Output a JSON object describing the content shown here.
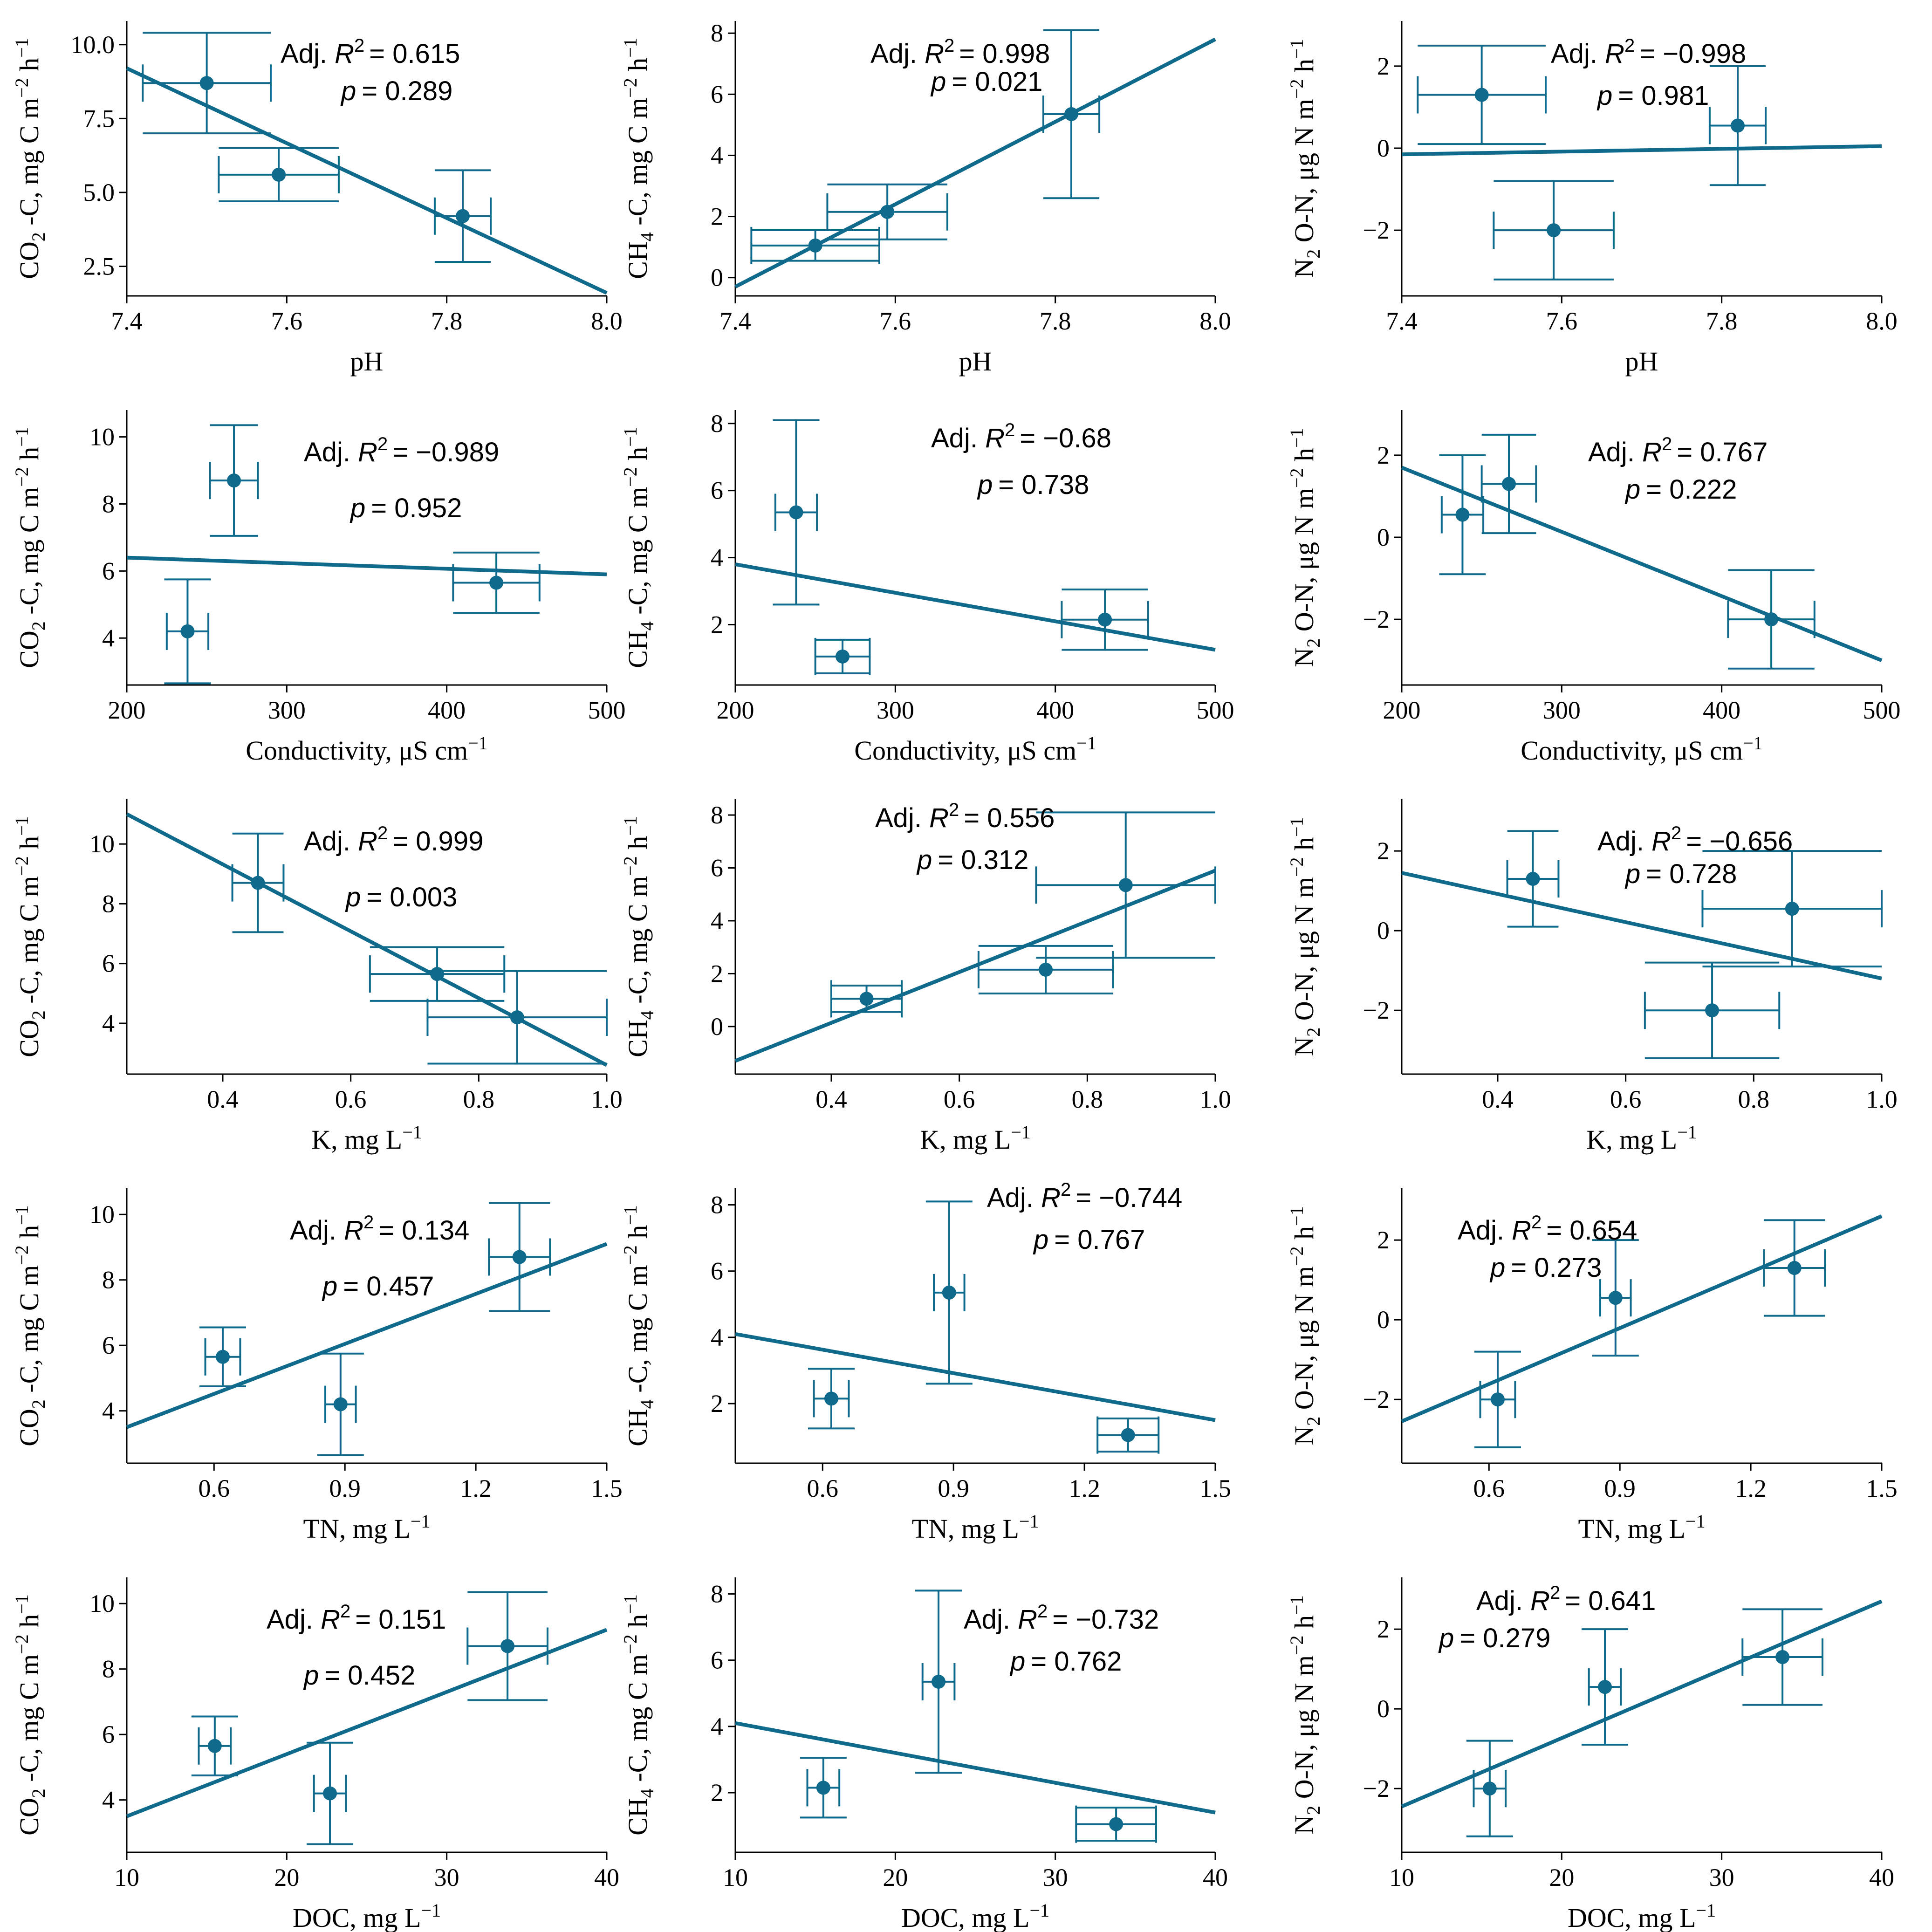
{
  "colors": {
    "series": "#0f6a8b",
    "axis": "#000000"
  },
  "chart_data": [
    {
      "type": "scatter",
      "row": 0,
      "col": 0,
      "x_label": "pH",
      "y_label": "CO2 -C, mg C m-2 h-1",
      "xlim": [
        7.4,
        8.0
      ],
      "ylim": [
        1.5,
        10.8
      ],
      "xticks": [
        7.4,
        7.6,
        7.8,
        8.0
      ],
      "xtick_labels": [
        "7.4",
        "7.6",
        "7.8",
        "8.0"
      ],
      "yticks": [
        2.5,
        5.0,
        7.5,
        10.0
      ],
      "ytick_labels": [
        "2.5",
        "5.0",
        "7.5",
        "10.0"
      ],
      "points": [
        {
          "x": 7.5,
          "y": 8.7,
          "xerr": 0.08,
          "yerr": 1.7
        },
        {
          "x": 7.59,
          "y": 5.6,
          "xerr": 0.075,
          "yerr": 0.9
        },
        {
          "x": 7.82,
          "y": 4.2,
          "xerr": 0.035,
          "yerr": 1.55
        }
      ],
      "fit": {
        "x1": 7.4,
        "y1": 9.2,
        "x2": 8.0,
        "y2": 1.6
      },
      "adj_r2_label": "Adj. R",
      "adj_r2_value": "= 0.615",
      "p_label": "p",
      "p_value": "= 0.289"
    },
    {
      "type": "scatter",
      "row": 0,
      "col": 1,
      "x_label": "pH",
      "y_label": "CH4 -C, mg C m-2 h-1",
      "xlim": [
        7.4,
        8.0
      ],
      "ylim": [
        -0.6,
        8.4
      ],
      "xticks": [
        7.4,
        7.6,
        7.8,
        8.0
      ],
      "xtick_labels": [
        "7.4",
        "7.6",
        "7.8",
        "8.0"
      ],
      "yticks": [
        0,
        2,
        4,
        6,
        8
      ],
      "ytick_labels": [
        "0",
        "2",
        "4",
        "6",
        "8"
      ],
      "points": [
        {
          "x": 7.5,
          "y": 1.05,
          "xerr": 0.08,
          "yerr": 0.5
        },
        {
          "x": 7.59,
          "y": 2.15,
          "xerr": 0.075,
          "yerr": 0.9
        },
        {
          "x": 7.82,
          "y": 5.35,
          "xerr": 0.035,
          "yerr": 2.75
        }
      ],
      "fit": {
        "x1": 7.4,
        "y1": -0.3,
        "x2": 8.0,
        "y2": 7.8
      },
      "adj_r2_label": "Adj. R",
      "adj_r2_value": "= 0.998",
      "p_label": "p",
      "p_value": "= 0.021"
    },
    {
      "type": "scatter",
      "row": 0,
      "col": 2,
      "x_label": "pH",
      "y_label": "N2 O-N, μg N m-2 h-1",
      "xlim": [
        7.4,
        8.0
      ],
      "ylim": [
        -3.6,
        3.1
      ],
      "xticks": [
        7.4,
        7.6,
        7.8,
        8.0
      ],
      "xtick_labels": [
        "7.4",
        "7.6",
        "7.8",
        "8.0"
      ],
      "yticks": [
        -2,
        0,
        2
      ],
      "ytick_labels": [
        "−2",
        "0",
        "2"
      ],
      "points": [
        {
          "x": 7.5,
          "y": 1.3,
          "xerr": 0.08,
          "yerr": 1.2
        },
        {
          "x": 7.59,
          "y": -2.0,
          "xerr": 0.075,
          "yerr": 1.2
        },
        {
          "x": 7.82,
          "y": 0.55,
          "xerr": 0.035,
          "yerr": 1.45
        }
      ],
      "fit": {
        "x1": 7.4,
        "y1": -0.15,
        "x2": 8.0,
        "y2": 0.05
      },
      "adj_r2_label": "Adj. R",
      "adj_r2_value": "= −0.998",
      "p_label": "p",
      "p_value": "= 0.981"
    },
    {
      "type": "scatter",
      "row": 1,
      "col": 0,
      "x_label": "Conductivity,  μS cm-1",
      "y_label": "CO2 -C, mg C m-2 h-1",
      "xlim": [
        200,
        500
      ],
      "ylim": [
        2.6,
        10.8
      ],
      "xticks": [
        200,
        300,
        400,
        500
      ],
      "xtick_labels": [
        "200",
        "300",
        "400",
        "500"
      ],
      "yticks": [
        4,
        6,
        8,
        10
      ],
      "ytick_labels": [
        "4",
        "6",
        "8",
        "10"
      ],
      "points": [
        {
          "x": 238,
          "y": 4.2,
          "xerr": 13,
          "yerr": 1.55
        },
        {
          "x": 267,
          "y": 8.7,
          "xerr": 15,
          "yerr": 1.65
        },
        {
          "x": 431,
          "y": 5.65,
          "xerr": 27,
          "yerr": 0.9
        }
      ],
      "fit": {
        "x1": 200,
        "y1": 6.4,
        "x2": 500,
        "y2": 5.9
      },
      "adj_r2_label": "Adj. R",
      "adj_r2_value": "= −0.989",
      "p_label": "p",
      "p_value": "= 0.952"
    },
    {
      "type": "scatter",
      "row": 1,
      "col": 1,
      "x_label": "Conductivity,  μS cm-1",
      "y_label": "CH4 -C, mg C m-2 h-1",
      "xlim": [
        200,
        500
      ],
      "ylim": [
        0.2,
        8.4
      ],
      "xticks": [
        200,
        300,
        400,
        500
      ],
      "xtick_labels": [
        "200",
        "300",
        "400",
        "500"
      ],
      "yticks": [
        2,
        4,
        6,
        8
      ],
      "ytick_labels": [
        "2",
        "4",
        "6",
        "8"
      ],
      "points": [
        {
          "x": 238,
          "y": 5.35,
          "xerr": 13,
          "yerr": 2.75
        },
        {
          "x": 267,
          "y": 1.05,
          "xerr": 17,
          "yerr": 0.5
        },
        {
          "x": 431,
          "y": 2.15,
          "xerr": 27,
          "yerr": 0.9
        }
      ],
      "fit": {
        "x1": 200,
        "y1": 3.8,
        "x2": 500,
        "y2": 1.25
      },
      "adj_r2_label": "Adj. R",
      "adj_r2_value": "= −0.68",
      "p_label": "p",
      "p_value": "= 0.738"
    },
    {
      "type": "scatter",
      "row": 1,
      "col": 2,
      "x_label": "Conductivity,  μS cm-1",
      "y_label": "N2 O-N, μg N m-2 h-1",
      "xlim": [
        200,
        500
      ],
      "ylim": [
        -3.6,
        3.1
      ],
      "xticks": [
        200,
        300,
        400,
        500
      ],
      "xtick_labels": [
        "200",
        "300",
        "400",
        "500"
      ],
      "yticks": [
        -2,
        0,
        2
      ],
      "ytick_labels": [
        "−2",
        "0",
        "2"
      ],
      "points": [
        {
          "x": 238,
          "y": 0.55,
          "xerr": 13,
          "yerr": 1.45
        },
        {
          "x": 267,
          "y": 1.3,
          "xerr": 17,
          "yerr": 1.2
        },
        {
          "x": 431,
          "y": -2.0,
          "xerr": 27,
          "yerr": 1.2
        }
      ],
      "fit": {
        "x1": 200,
        "y1": 1.7,
        "x2": 500,
        "y2": -3.0
      },
      "adj_r2_label": "Adj. R",
      "adj_r2_value": "= 0.767",
      "p_label": "p",
      "p_value": "= 0.222"
    },
    {
      "type": "scatter",
      "row": 2,
      "col": 0,
      "x_label": "K,  mg L-1",
      "y_label": "CO2 -C, mg C m-2 h-1",
      "xlim": [
        0.25,
        1.0
      ],
      "ylim": [
        2.3,
        11.5
      ],
      "xticks": [
        0.4,
        0.6,
        0.8,
        1.0
      ],
      "xtick_labels": [
        "0.4",
        "0.6",
        "0.8",
        "1.0"
      ],
      "yticks": [
        4,
        6,
        8,
        10
      ],
      "ytick_labels": [
        "4",
        "6",
        "8",
        "10"
      ],
      "points": [
        {
          "x": 0.455,
          "y": 8.7,
          "xerr": 0.04,
          "yerr": 1.65
        },
        {
          "x": 0.735,
          "y": 5.65,
          "xerr": 0.105,
          "yerr": 0.9
        },
        {
          "x": 0.86,
          "y": 4.2,
          "xerr": 0.14,
          "yerr": 1.55
        }
      ],
      "fit": {
        "x1": 0.25,
        "y1": 11.0,
        "x2": 1.0,
        "y2": 2.6
      },
      "adj_r2_label": "Adj. R",
      "adj_r2_value": "= 0.999",
      "p_label": "p",
      "p_value": "= 0.003"
    },
    {
      "type": "scatter",
      "row": 2,
      "col": 1,
      "x_label": "K,  mg L-1",
      "y_label": "CH4 -C, mg C m-2 h-1",
      "xlim": [
        0.25,
        1.0
      ],
      "ylim": [
        -1.8,
        8.6
      ],
      "xticks": [
        0.4,
        0.6,
        0.8,
        1.0
      ],
      "xtick_labels": [
        "0.4",
        "0.6",
        "0.8",
        "1.0"
      ],
      "yticks": [
        0,
        2,
        4,
        6,
        8
      ],
      "ytick_labels": [
        "0",
        "2",
        "4",
        "6",
        "8"
      ],
      "points": [
        {
          "x": 0.455,
          "y": 1.05,
          "xerr": 0.055,
          "yerr": 0.5
        },
        {
          "x": 0.735,
          "y": 2.15,
          "xerr": 0.105,
          "yerr": 0.9
        },
        {
          "x": 0.86,
          "y": 5.35,
          "xerr": 0.14,
          "yerr": 2.75
        }
      ],
      "fit": {
        "x1": 0.25,
        "y1": -1.3,
        "x2": 1.0,
        "y2": 5.9
      },
      "adj_r2_label": "Adj. R",
      "adj_r2_value": "= 0.556",
      "p_label": "p",
      "p_value": "= 0.312"
    },
    {
      "type": "scatter",
      "row": 2,
      "col": 2,
      "x_label": "K,  mg L-1",
      "y_label": "N2 O-N, μg N m-2 h-1",
      "xlim": [
        0.25,
        1.0
      ],
      "ylim": [
        -3.6,
        3.3
      ],
      "xticks": [
        0.4,
        0.6,
        0.8,
        1.0
      ],
      "xtick_labels": [
        "0.4",
        "0.6",
        "0.8",
        "1.0"
      ],
      "yticks": [
        -2,
        0,
        2
      ],
      "ytick_labels": [
        "−2",
        "0",
        "2"
      ],
      "points": [
        {
          "x": 0.455,
          "y": 1.3,
          "xerr": 0.04,
          "yerr": 1.2
        },
        {
          "x": 0.735,
          "y": -2.0,
          "xerr": 0.105,
          "yerr": 1.2
        },
        {
          "x": 0.86,
          "y": 0.55,
          "xerr": 0.14,
          "yerr": 1.45
        }
      ],
      "fit": {
        "x1": 0.25,
        "y1": 1.45,
        "x2": 1.0,
        "y2": -1.2
      },
      "adj_r2_label": "Adj. R",
      "adj_r2_value": "= −0.656",
      "p_label": "p",
      "p_value": "= 0.728"
    },
    {
      "type": "scatter",
      "row": 3,
      "col": 0,
      "x_label": "TN,  mg L-1",
      "y_label": "CO2 -C, mg C m-2 h-1",
      "xlim": [
        0.4,
        1.5
      ],
      "ylim": [
        2.4,
        10.8
      ],
      "xticks": [
        0.6,
        0.9,
        1.2,
        1.5
      ],
      "xtick_labels": [
        "0.6",
        "0.9",
        "1.2",
        "1.5"
      ],
      "yticks": [
        4,
        6,
        8,
        10
      ],
      "ytick_labels": [
        "4",
        "6",
        "8",
        "10"
      ],
      "points": [
        {
          "x": 0.62,
          "y": 5.65,
          "xerr": 0.04,
          "yerr": 0.9
        },
        {
          "x": 0.89,
          "y": 4.2,
          "xerr": 0.035,
          "yerr": 1.55
        },
        {
          "x": 1.3,
          "y": 8.7,
          "xerr": 0.07,
          "yerr": 1.65
        }
      ],
      "fit": {
        "x1": 0.4,
        "y1": 3.5,
        "x2": 1.5,
        "y2": 9.1
      },
      "adj_r2_label": "Adj. R",
      "adj_r2_value": "= 0.134",
      "p_label": "p",
      "p_value": "= 0.457"
    },
    {
      "type": "scatter",
      "row": 3,
      "col": 1,
      "x_label": "TN,  mg L-1",
      "y_label": "CH4 -C, mg C m-2 h-1",
      "xlim": [
        0.4,
        1.5
      ],
      "ylim": [
        0.2,
        8.5
      ],
      "xticks": [
        0.6,
        0.9,
        1.2,
        1.5
      ],
      "xtick_labels": [
        "0.6",
        "0.9",
        "1.2",
        "1.5"
      ],
      "yticks": [
        2,
        4,
        6,
        8
      ],
      "ytick_labels": [
        "2",
        "4",
        "6",
        "8"
      ],
      "points": [
        {
          "x": 0.62,
          "y": 2.15,
          "xerr": 0.04,
          "yerr": 0.9
        },
        {
          "x": 0.89,
          "y": 5.35,
          "xerr": 0.035,
          "yerr": 2.75
        },
        {
          "x": 1.3,
          "y": 1.05,
          "xerr": 0.07,
          "yerr": 0.5
        }
      ],
      "fit": {
        "x1": 0.4,
        "y1": 4.1,
        "x2": 1.5,
        "y2": 1.5
      },
      "adj_r2_label": "Adj. R",
      "adj_r2_value": "= −0.744",
      "p_label": "p",
      "p_value": "= 0.767"
    },
    {
      "type": "scatter",
      "row": 3,
      "col": 2,
      "x_label": "TN,  mg L-1",
      "y_label": "N2 O-N, μg N m-2 h-1",
      "xlim": [
        0.4,
        1.5
      ],
      "ylim": [
        -3.6,
        3.3
      ],
      "xticks": [
        0.6,
        0.9,
        1.2,
        1.5
      ],
      "xtick_labels": [
        "0.6",
        "0.9",
        "1.2",
        "1.5"
      ],
      "yticks": [
        -2,
        0,
        2
      ],
      "ytick_labels": [
        "−2",
        "0",
        "2"
      ],
      "points": [
        {
          "x": 0.62,
          "y": -2.0,
          "xerr": 0.04,
          "yerr": 1.2
        },
        {
          "x": 0.89,
          "y": 0.55,
          "xerr": 0.035,
          "yerr": 1.45
        },
        {
          "x": 1.3,
          "y": 1.3,
          "xerr": 0.07,
          "yerr": 1.2
        }
      ],
      "fit": {
        "x1": 0.4,
        "y1": -2.55,
        "x2": 1.5,
        "y2": 2.6
      },
      "adj_r2_label": "Adj. R",
      "adj_r2_value": "= 0.654",
      "p_label": "p",
      "p_value": "= 0.273"
    },
    {
      "type": "scatter",
      "row": 4,
      "col": 0,
      "x_label": "DOC,  mg L-1",
      "y_label": "CO2 -C, mg C m-2 h-1",
      "xlim": [
        10,
        40
      ],
      "ylim": [
        2.4,
        10.8
      ],
      "xticks": [
        10,
        20,
        30,
        40
      ],
      "xtick_labels": [
        "10",
        "20",
        "30",
        "40"
      ],
      "yticks": [
        4,
        6,
        8,
        10
      ],
      "ytick_labels": [
        "4",
        "6",
        "8",
        "10"
      ],
      "points": [
        {
          "x": 15.5,
          "y": 5.65,
          "xerr": 1.0,
          "yerr": 0.9
        },
        {
          "x": 22.7,
          "y": 4.2,
          "xerr": 1.0,
          "yerr": 1.55
        },
        {
          "x": 33.8,
          "y": 8.7,
          "xerr": 2.5,
          "yerr": 1.65
        }
      ],
      "fit": {
        "x1": 10,
        "y1": 3.5,
        "x2": 40,
        "y2": 9.2
      },
      "adj_r2_label": "Adj. R",
      "adj_r2_value": "= 0.151",
      "p_label": "p",
      "p_value": "= 0.452"
    },
    {
      "type": "scatter",
      "row": 4,
      "col": 1,
      "x_label": "DOC,  mg L-1",
      "y_label": "CH4 -C, mg C m-2 h-1",
      "xlim": [
        10,
        40
      ],
      "ylim": [
        0.2,
        8.5
      ],
      "xticks": [
        10,
        20,
        30,
        40
      ],
      "xtick_labels": [
        "10",
        "20",
        "30",
        "40"
      ],
      "yticks": [
        2,
        4,
        6,
        8
      ],
      "ytick_labels": [
        "2",
        "4",
        "6",
        "8"
      ],
      "points": [
        {
          "x": 15.5,
          "y": 2.15,
          "xerr": 1.0,
          "yerr": 0.9
        },
        {
          "x": 22.7,
          "y": 5.35,
          "xerr": 1.0,
          "yerr": 2.75
        },
        {
          "x": 33.8,
          "y": 1.05,
          "xerr": 2.5,
          "yerr": 0.5
        }
      ],
      "fit": {
        "x1": 10,
        "y1": 4.1,
        "x2": 40,
        "y2": 1.4
      },
      "adj_r2_label": "Adj. R",
      "adj_r2_value": "= −0.732",
      "p_label": "p",
      "p_value": "= 0.762"
    },
    {
      "type": "scatter",
      "row": 4,
      "col": 2,
      "x_label": "DOC,  mg L-1",
      "y_label": "N2 O-N, μg N m-2 h-1",
      "xlim": [
        10,
        40
      ],
      "ylim": [
        -3.6,
        3.3
      ],
      "xticks": [
        10,
        20,
        30,
        40
      ],
      "xtick_labels": [
        "10",
        "20",
        "30",
        "40"
      ],
      "yticks": [
        -2,
        0,
        2
      ],
      "ytick_labels": [
        "−2",
        "0",
        "2"
      ],
      "points": [
        {
          "x": 15.5,
          "y": -2.0,
          "xerr": 1.0,
          "yerr": 1.2
        },
        {
          "x": 22.7,
          "y": 0.55,
          "xerr": 1.0,
          "yerr": 1.45
        },
        {
          "x": 33.8,
          "y": 1.3,
          "xerr": 2.5,
          "yerr": 1.2
        }
      ],
      "fit": {
        "x1": 10,
        "y1": -2.45,
        "x2": 40,
        "y2": 2.7
      },
      "adj_r2_label": "Adj. R",
      "adj_r2_value": "= 0.641",
      "p_label": "p",
      "p_value": "= 0.279"
    }
  ]
}
